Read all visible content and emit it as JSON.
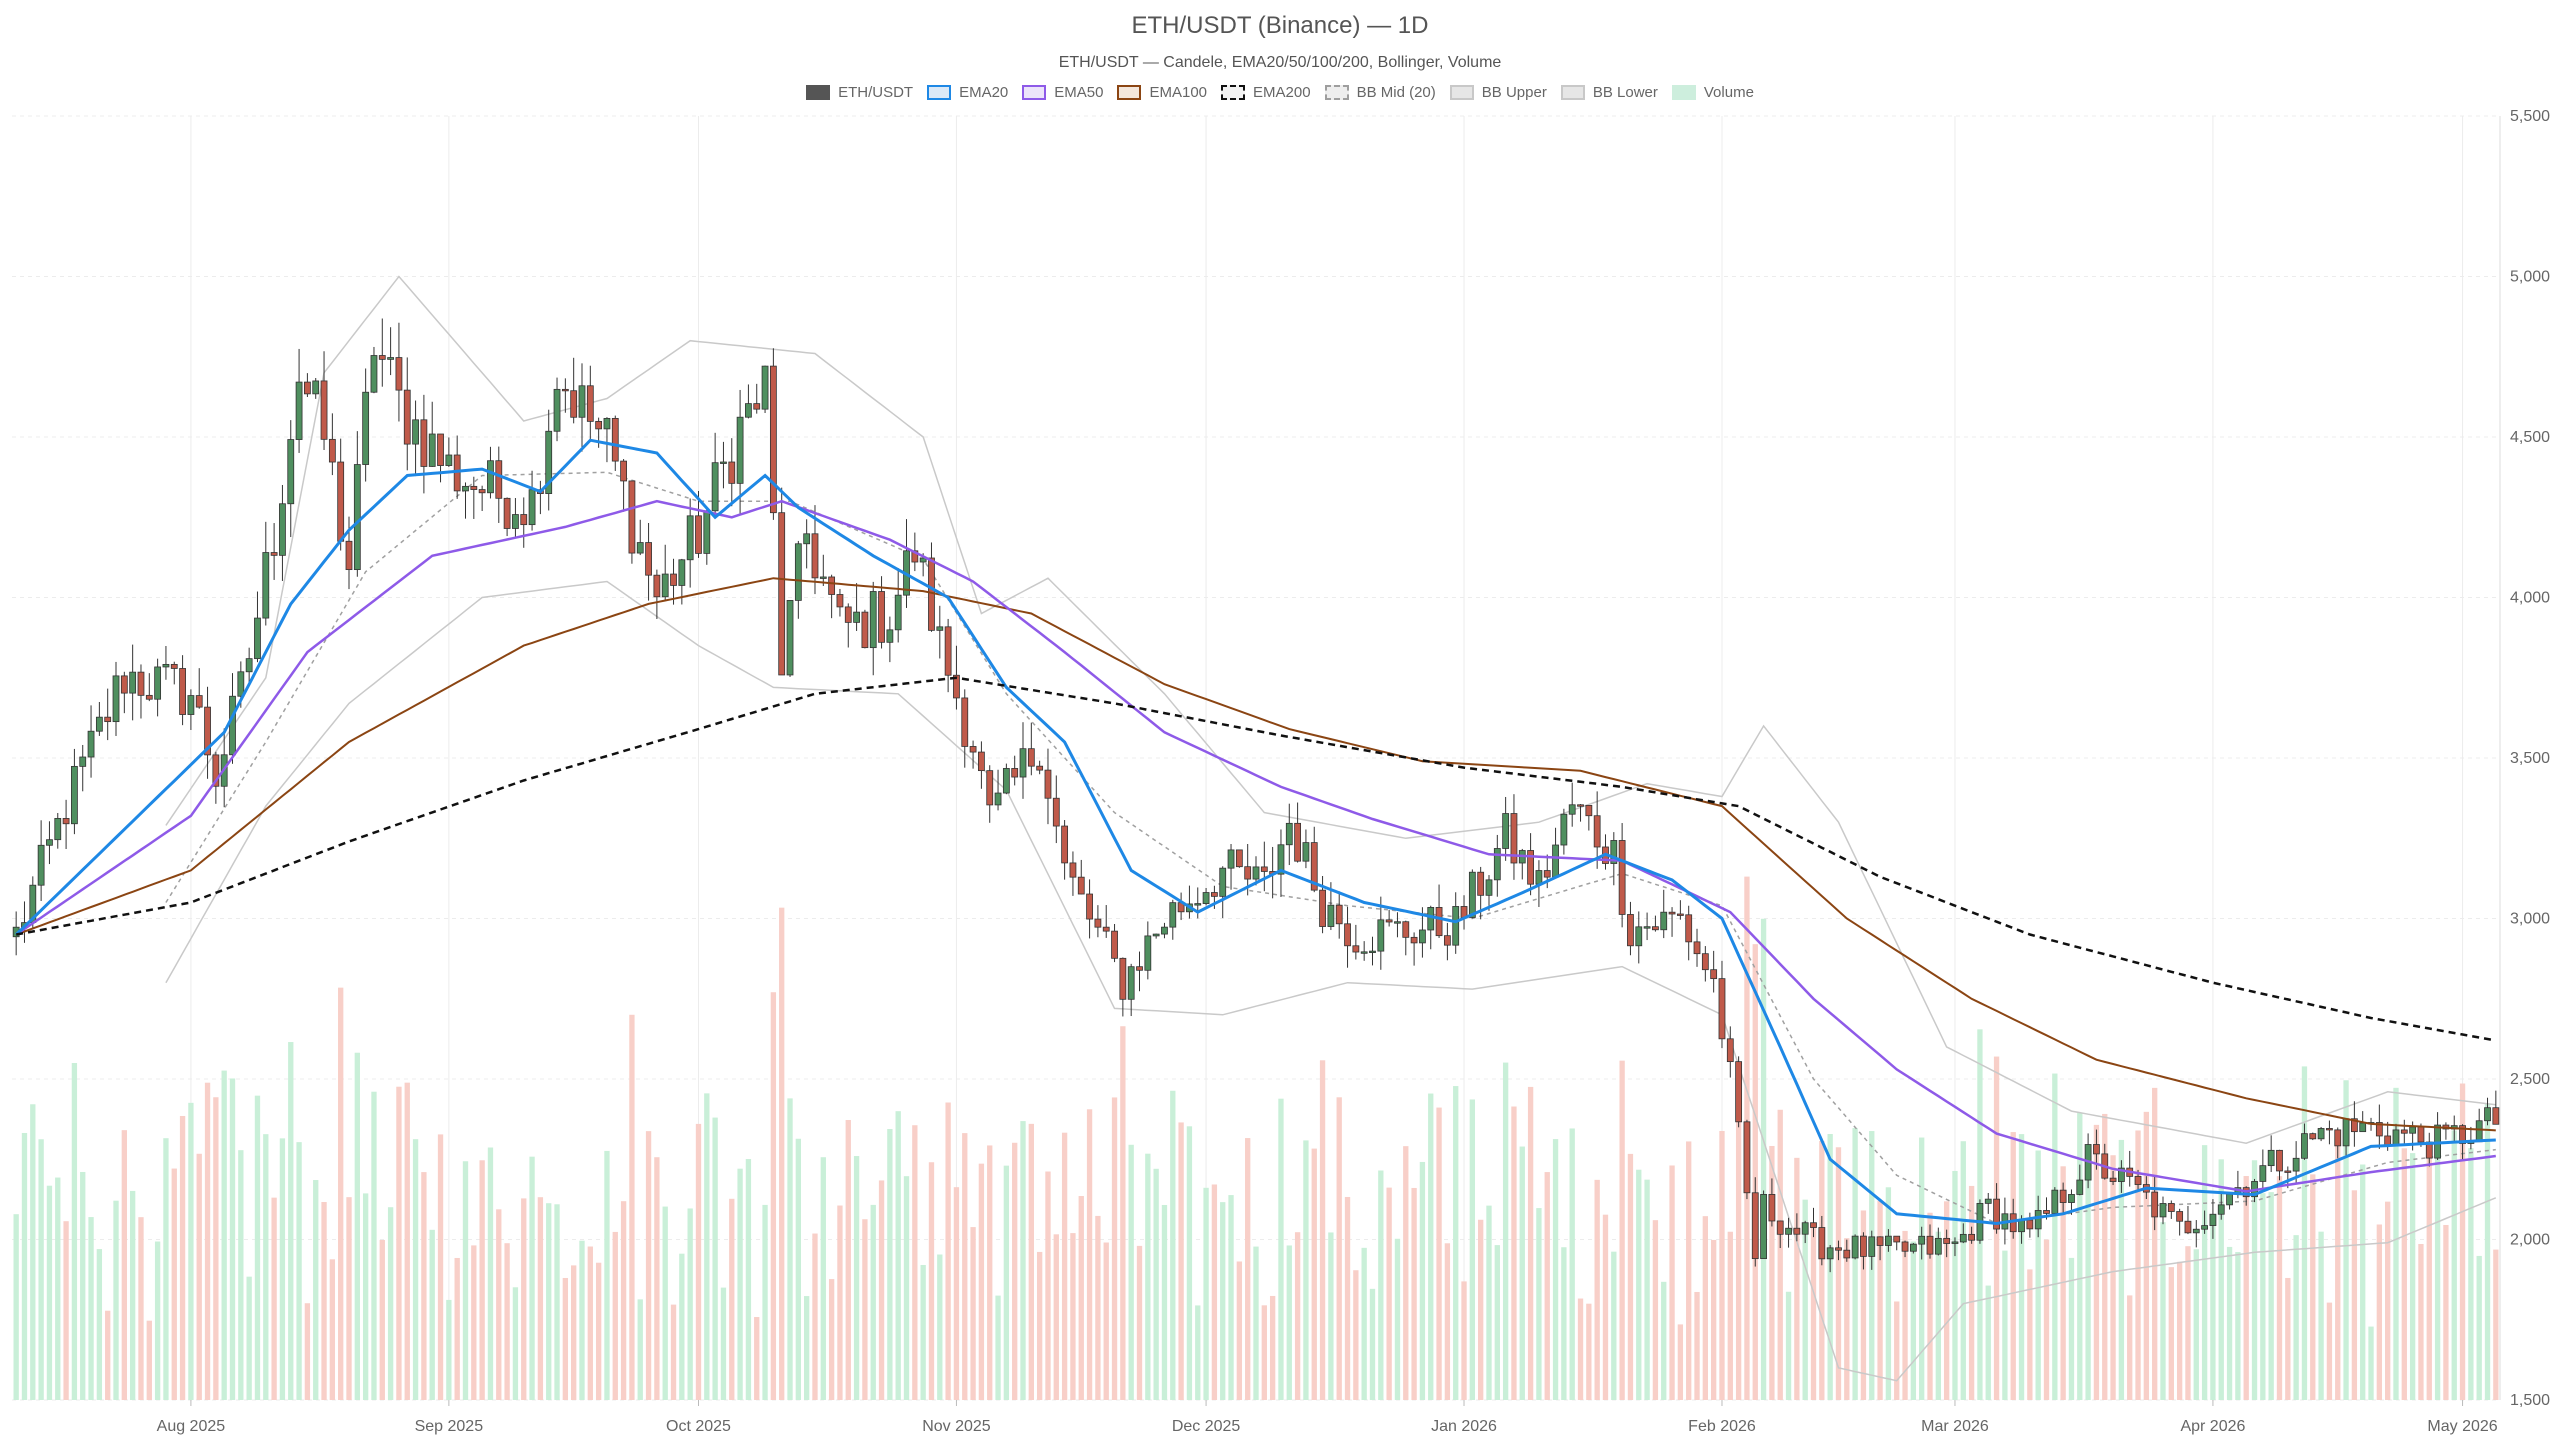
{
  "chart_data": {
    "type": "candlestick",
    "title": "ETH/USDT (Binance) — 1D",
    "subtitle": "ETH/USDT — Candele, EMA20/50/100/200, Bollinger, Volume",
    "ylim": [
      1500,
      5500
    ],
    "yticks": [
      1500,
      2000,
      2500,
      3000,
      3500,
      4000,
      4500,
      5000,
      5500
    ],
    "ytick_labels": [
      "1,500",
      "2,000",
      "2,500",
      "3,000",
      "3,500",
      "4,000",
      "4,500",
      "5,000",
      "5,500"
    ],
    "x_start": "2025-07-11",
    "x_end": "2026-05-05",
    "xticks": [
      {
        "date": "2025-08-01",
        "label": "Aug 2025"
      },
      {
        "date": "2025-09-01",
        "label": "Sep 2025"
      },
      {
        "date": "2025-10-01",
        "label": "Oct 2025"
      },
      {
        "date": "2025-11-01",
        "label": "Nov 2025"
      },
      {
        "date": "2025-12-01",
        "label": "Dec 2025"
      },
      {
        "date": "2026-01-01",
        "label": "Jan 2026"
      },
      {
        "date": "2026-02-01",
        "label": "Feb 2026"
      },
      {
        "date": "2026-03-01",
        "label": "Mar 2026"
      },
      {
        "date": "2026-04-01",
        "label": "Apr 2026"
      },
      {
        "date": "2026-05-01",
        "label": "May 2026"
      }
    ],
    "grid": true,
    "legend_position": "top-center",
    "legend": [
      {
        "name": "ETH/USDT",
        "color": "#555555",
        "fill": "#555555",
        "dashed": false
      },
      {
        "name": "EMA20",
        "color": "#1e88e5",
        "fill": "#dbe9f7",
        "dashed": false
      },
      {
        "name": "EMA50",
        "color": "#8e5ae8",
        "fill": "#ece4fa",
        "dashed": false
      },
      {
        "name": "EMA100",
        "color": "#8b4513",
        "fill": "#f4e7dc",
        "dashed": false
      },
      {
        "name": "EMA200",
        "color": "#111111",
        "fill": "#f3f3f3",
        "dashed": true
      },
      {
        "name": "BB Mid (20)",
        "color": "#9e9e9e",
        "fill": "#eeeeee",
        "dashed": true
      },
      {
        "name": "BB Upper",
        "color": "#c8c8c8",
        "fill": "#e6e6e6",
        "dashed": false
      },
      {
        "name": "BB Lower",
        "color": "#c8c8c8",
        "fill": "#e6e6e6",
        "dashed": false
      },
      {
        "name": "Volume",
        "color": "#cdeedd",
        "fill": "#cdeedd",
        "dashed": false
      }
    ],
    "colors": {
      "up": "#4f8f5f",
      "down": "#c05a4a",
      "volume_up": "#c9efd8",
      "volume_down": "#f8cfc8",
      "grid": "#ececec"
    },
    "price_path": [
      [
        "2025-07-11",
        2950
      ],
      [
        "2025-07-17",
        3350
      ],
      [
        "2025-07-24",
        3760
      ],
      [
        "2025-08-01",
        3700
      ],
      [
        "2025-08-04",
        3450
      ],
      [
        "2025-08-07",
        3700
      ],
      [
        "2025-08-11",
        4200
      ],
      [
        "2025-08-14",
        4700
      ],
      [
        "2025-08-17",
        4500
      ],
      [
        "2025-08-20",
        4100
      ],
      [
        "2025-08-23",
        4800
      ],
      [
        "2025-08-26",
        4600
      ],
      [
        "2025-09-01",
        4400
      ],
      [
        "2025-09-06",
        4330
      ],
      [
        "2025-09-11",
        4300
      ],
      [
        "2025-09-14",
        4700
      ],
      [
        "2025-09-20",
        4480
      ],
      [
        "2025-09-26",
        4000
      ],
      [
        "2025-10-01",
        4200
      ],
      [
        "2025-10-06",
        4530
      ],
      [
        "2025-10-09",
        4650
      ],
      [
        "2025-10-11",
        3800
      ],
      [
        "2025-10-14",
        4200
      ],
      [
        "2025-10-18",
        3900
      ],
      [
        "2025-10-24",
        3950
      ],
      [
        "2025-10-27",
        4150
      ],
      [
        "2025-10-30",
        3850
      ],
      [
        "2025-11-03",
        3550
      ],
      [
        "2025-11-05",
        3300
      ],
      [
        "2025-11-11",
        3550
      ],
      [
        "2025-11-14",
        3150
      ],
      [
        "2025-11-21",
        2800
      ],
      [
        "2025-11-26",
        3000
      ],
      [
        "2025-12-03",
        3150
      ],
      [
        "2025-12-08",
        3100
      ],
      [
        "2025-12-11",
        3300
      ],
      [
        "2025-12-15",
        3050
      ],
      [
        "2025-12-19",
        2950
      ],
      [
        "2025-12-24",
        2960
      ],
      [
        "2025-12-31",
        2980
      ],
      [
        "2026-01-06",
        3250
      ],
      [
        "2026-01-10",
        3100
      ],
      [
        "2026-01-14",
        3350
      ],
      [
        "2026-01-19",
        3200
      ],
      [
        "2026-01-21",
        2970
      ],
      [
        "2026-01-27",
        3000
      ],
      [
        "2026-01-31",
        2800
      ],
      [
        "2026-02-02",
        2500
      ],
      [
        "2026-02-05",
        1950
      ],
      [
        "2026-02-06",
        2100
      ],
      [
        "2026-02-12",
        1990
      ],
      [
        "2026-02-20",
        1960
      ],
      [
        "2026-03-01",
        1980
      ],
      [
        "2026-03-05",
        2100
      ],
      [
        "2026-03-10",
        2010
      ],
      [
        "2026-03-17",
        2250
      ],
      [
        "2026-03-23",
        2150
      ],
      [
        "2026-03-28",
        2030
      ],
      [
        "2026-04-06",
        2200
      ],
      [
        "2026-04-14",
        2330
      ],
      [
        "2026-04-20",
        2350
      ],
      [
        "2026-04-28",
        2300
      ],
      [
        "2026-05-05",
        2370
      ]
    ],
    "ema20": [
      [
        "2025-07-11",
        2950
      ],
      [
        "2025-08-05",
        3580
      ],
      [
        "2025-08-13",
        3980
      ],
      [
        "2025-08-20",
        4210
      ],
      [
        "2025-08-27",
        4380
      ],
      [
        "2025-09-05",
        4400
      ],
      [
        "2025-09-12",
        4330
      ],
      [
        "2025-09-18",
        4490
      ],
      [
        "2025-09-26",
        4450
      ],
      [
        "2025-10-03",
        4250
      ],
      [
        "2025-10-09",
        4380
      ],
      [
        "2025-10-13",
        4280
      ],
      [
        "2025-10-22",
        4130
      ],
      [
        "2025-10-31",
        4000
      ],
      [
        "2025-11-07",
        3720
      ],
      [
        "2025-11-14",
        3550
      ],
      [
        "2025-11-22",
        3150
      ],
      [
        "2025-11-30",
        3020
      ],
      [
        "2025-12-10",
        3150
      ],
      [
        "2025-12-20",
        3050
      ],
      [
        "2025-12-31",
        2990
      ],
      [
        "2026-01-08",
        3080
      ],
      [
        "2026-01-18",
        3200
      ],
      [
        "2026-01-26",
        3120
      ],
      [
        "2026-02-01",
        3000
      ],
      [
        "2026-02-08",
        2600
      ],
      [
        "2026-02-14",
        2250
      ],
      [
        "2026-02-22",
        2080
      ],
      [
        "2026-03-06",
        2050
      ],
      [
        "2026-03-14",
        2080
      ],
      [
        "2026-03-24",
        2160
      ],
      [
        "2026-04-06",
        2140
      ],
      [
        "2026-04-20",
        2290
      ],
      [
        "2026-05-05",
        2310
      ]
    ],
    "ema50": [
      [
        "2025-07-11",
        2950
      ],
      [
        "2025-08-01",
        3320
      ],
      [
        "2025-08-15",
        3830
      ],
      [
        "2025-08-30",
        4130
      ],
      [
        "2025-09-15",
        4220
      ],
      [
        "2025-09-26",
        4300
      ],
      [
        "2025-10-05",
        4250
      ],
      [
        "2025-10-11",
        4300
      ],
      [
        "2025-10-24",
        4180
      ],
      [
        "2025-11-03",
        4050
      ],
      [
        "2025-11-14",
        3830
      ],
      [
        "2025-11-26",
        3580
      ],
      [
        "2025-12-10",
        3410
      ],
      [
        "2025-12-21",
        3310
      ],
      [
        "2026-01-04",
        3200
      ],
      [
        "2026-01-20",
        3180
      ],
      [
        "2026-02-02",
        3020
      ],
      [
        "2026-02-12",
        2750
      ],
      [
        "2026-02-22",
        2530
      ],
      [
        "2026-03-06",
        2330
      ],
      [
        "2026-03-20",
        2220
      ],
      [
        "2026-04-05",
        2150
      ],
      [
        "2026-04-20",
        2210
      ],
      [
        "2026-05-05",
        2260
      ]
    ],
    "ema100": [
      [
        "2025-07-11",
        2950
      ],
      [
        "2025-08-01",
        3150
      ],
      [
        "2025-08-20",
        3550
      ],
      [
        "2025-09-10",
        3850
      ],
      [
        "2025-09-25",
        3980
      ],
      [
        "2025-10-10",
        4060
      ],
      [
        "2025-10-28",
        4020
      ],
      [
        "2025-11-10",
        3950
      ],
      [
        "2025-11-26",
        3730
      ],
      [
        "2025-12-11",
        3590
      ],
      [
        "2025-12-27",
        3490
      ],
      [
        "2026-01-15",
        3460
      ],
      [
        "2026-02-01",
        3350
      ],
      [
        "2026-02-16",
        3000
      ],
      [
        "2026-03-03",
        2750
      ],
      [
        "2026-03-18",
        2560
      ],
      [
        "2026-04-05",
        2440
      ],
      [
        "2026-04-20",
        2360
      ],
      [
        "2026-05-05",
        2340
      ]
    ],
    "ema200": [
      [
        "2025-07-11",
        2950
      ],
      [
        "2025-08-01",
        3050
      ],
      [
        "2025-08-20",
        3240
      ],
      [
        "2025-09-10",
        3430
      ],
      [
        "2025-10-01",
        3590
      ],
      [
        "2025-10-15",
        3700
      ],
      [
        "2025-11-01",
        3750
      ],
      [
        "2025-11-20",
        3670
      ],
      [
        "2025-12-10",
        3570
      ],
      [
        "2026-01-01",
        3470
      ],
      [
        "2026-01-20",
        3410
      ],
      [
        "2026-02-03",
        3350
      ],
      [
        "2026-02-20",
        3130
      ],
      [
        "2026-03-10",
        2950
      ],
      [
        "2026-04-01",
        2800
      ],
      [
        "2026-04-20",
        2690
      ],
      [
        "2026-05-05",
        2620
      ]
    ],
    "bb_upper": [
      [
        "2025-07-29",
        3290
      ],
      [
        "2025-08-10",
        3750
      ],
      [
        "2025-08-17",
        4700
      ],
      [
        "2025-08-26",
        5000
      ],
      [
        "2025-09-10",
        4550
      ],
      [
        "2025-09-20",
        4620
      ],
      [
        "2025-09-30",
        4800
      ],
      [
        "2025-10-15",
        4760
      ],
      [
        "2025-10-28",
        4500
      ],
      [
        "2025-11-04",
        3950
      ],
      [
        "2025-11-12",
        4060
      ],
      [
        "2025-11-26",
        3700
      ],
      [
        "2025-12-08",
        3330
      ],
      [
        "2025-12-25",
        3250
      ],
      [
        "2026-01-10",
        3300
      ],
      [
        "2026-01-23",
        3420
      ],
      [
        "2026-02-01",
        3380
      ],
      [
        "2026-02-06",
        3600
      ],
      [
        "2026-02-15",
        3300
      ],
      [
        "2026-02-28",
        2600
      ],
      [
        "2026-03-15",
        2400
      ],
      [
        "2026-04-05",
        2300
      ],
      [
        "2026-04-22",
        2460
      ],
      [
        "2026-05-05",
        2420
      ]
    ],
    "bb_lower": [
      [
        "2025-07-29",
        2800
      ],
      [
        "2025-08-10",
        3350
      ],
      [
        "2025-08-20",
        3670
      ],
      [
        "2025-09-05",
        4000
      ],
      [
        "2025-09-20",
        4050
      ],
      [
        "2025-10-01",
        3850
      ],
      [
        "2025-10-10",
        3720
      ],
      [
        "2025-10-25",
        3700
      ],
      [
        "2025-11-07",
        3400
      ],
      [
        "2025-11-20",
        2720
      ],
      [
        "2025-12-03",
        2700
      ],
      [
        "2025-12-18",
        2800
      ],
      [
        "2026-01-02",
        2780
      ],
      [
        "2026-01-20",
        2850
      ],
      [
        "2026-02-01",
        2700
      ],
      [
        "2026-02-15",
        1600
      ],
      [
        "2026-02-22",
        1560
      ],
      [
        "2026-03-02",
        1800
      ],
      [
        "2026-03-20",
        1900
      ],
      [
        "2026-04-06",
        1960
      ],
      [
        "2026-04-22",
        1990
      ],
      [
        "2026-05-05",
        2130
      ]
    ],
    "bb_mid": [
      [
        "2025-07-29",
        3050
      ],
      [
        "2025-08-10",
        3550
      ],
      [
        "2025-08-22",
        4080
      ],
      [
        "2025-09-05",
        4380
      ],
      [
        "2025-09-20",
        4390
      ],
      [
        "2025-10-01",
        4300
      ],
      [
        "2025-10-12",
        4300
      ],
      [
        "2025-10-28",
        4120
      ],
      [
        "2025-11-07",
        3700
      ],
      [
        "2025-11-20",
        3330
      ],
      [
        "2025-12-03",
        3100
      ],
      [
        "2025-12-18",
        3040
      ],
      [
        "2026-01-02",
        3000
      ],
      [
        "2026-01-20",
        3140
      ],
      [
        "2026-02-01",
        3040
      ],
      [
        "2026-02-12",
        2500
      ],
      [
        "2026-02-22",
        2200
      ],
      [
        "2026-03-06",
        2050
      ],
      [
        "2026-03-20",
        2100
      ],
      [
        "2026-04-06",
        2120
      ],
      [
        "2026-04-22",
        2240
      ],
      [
        "2026-05-05",
        2280
      ]
    ]
  }
}
